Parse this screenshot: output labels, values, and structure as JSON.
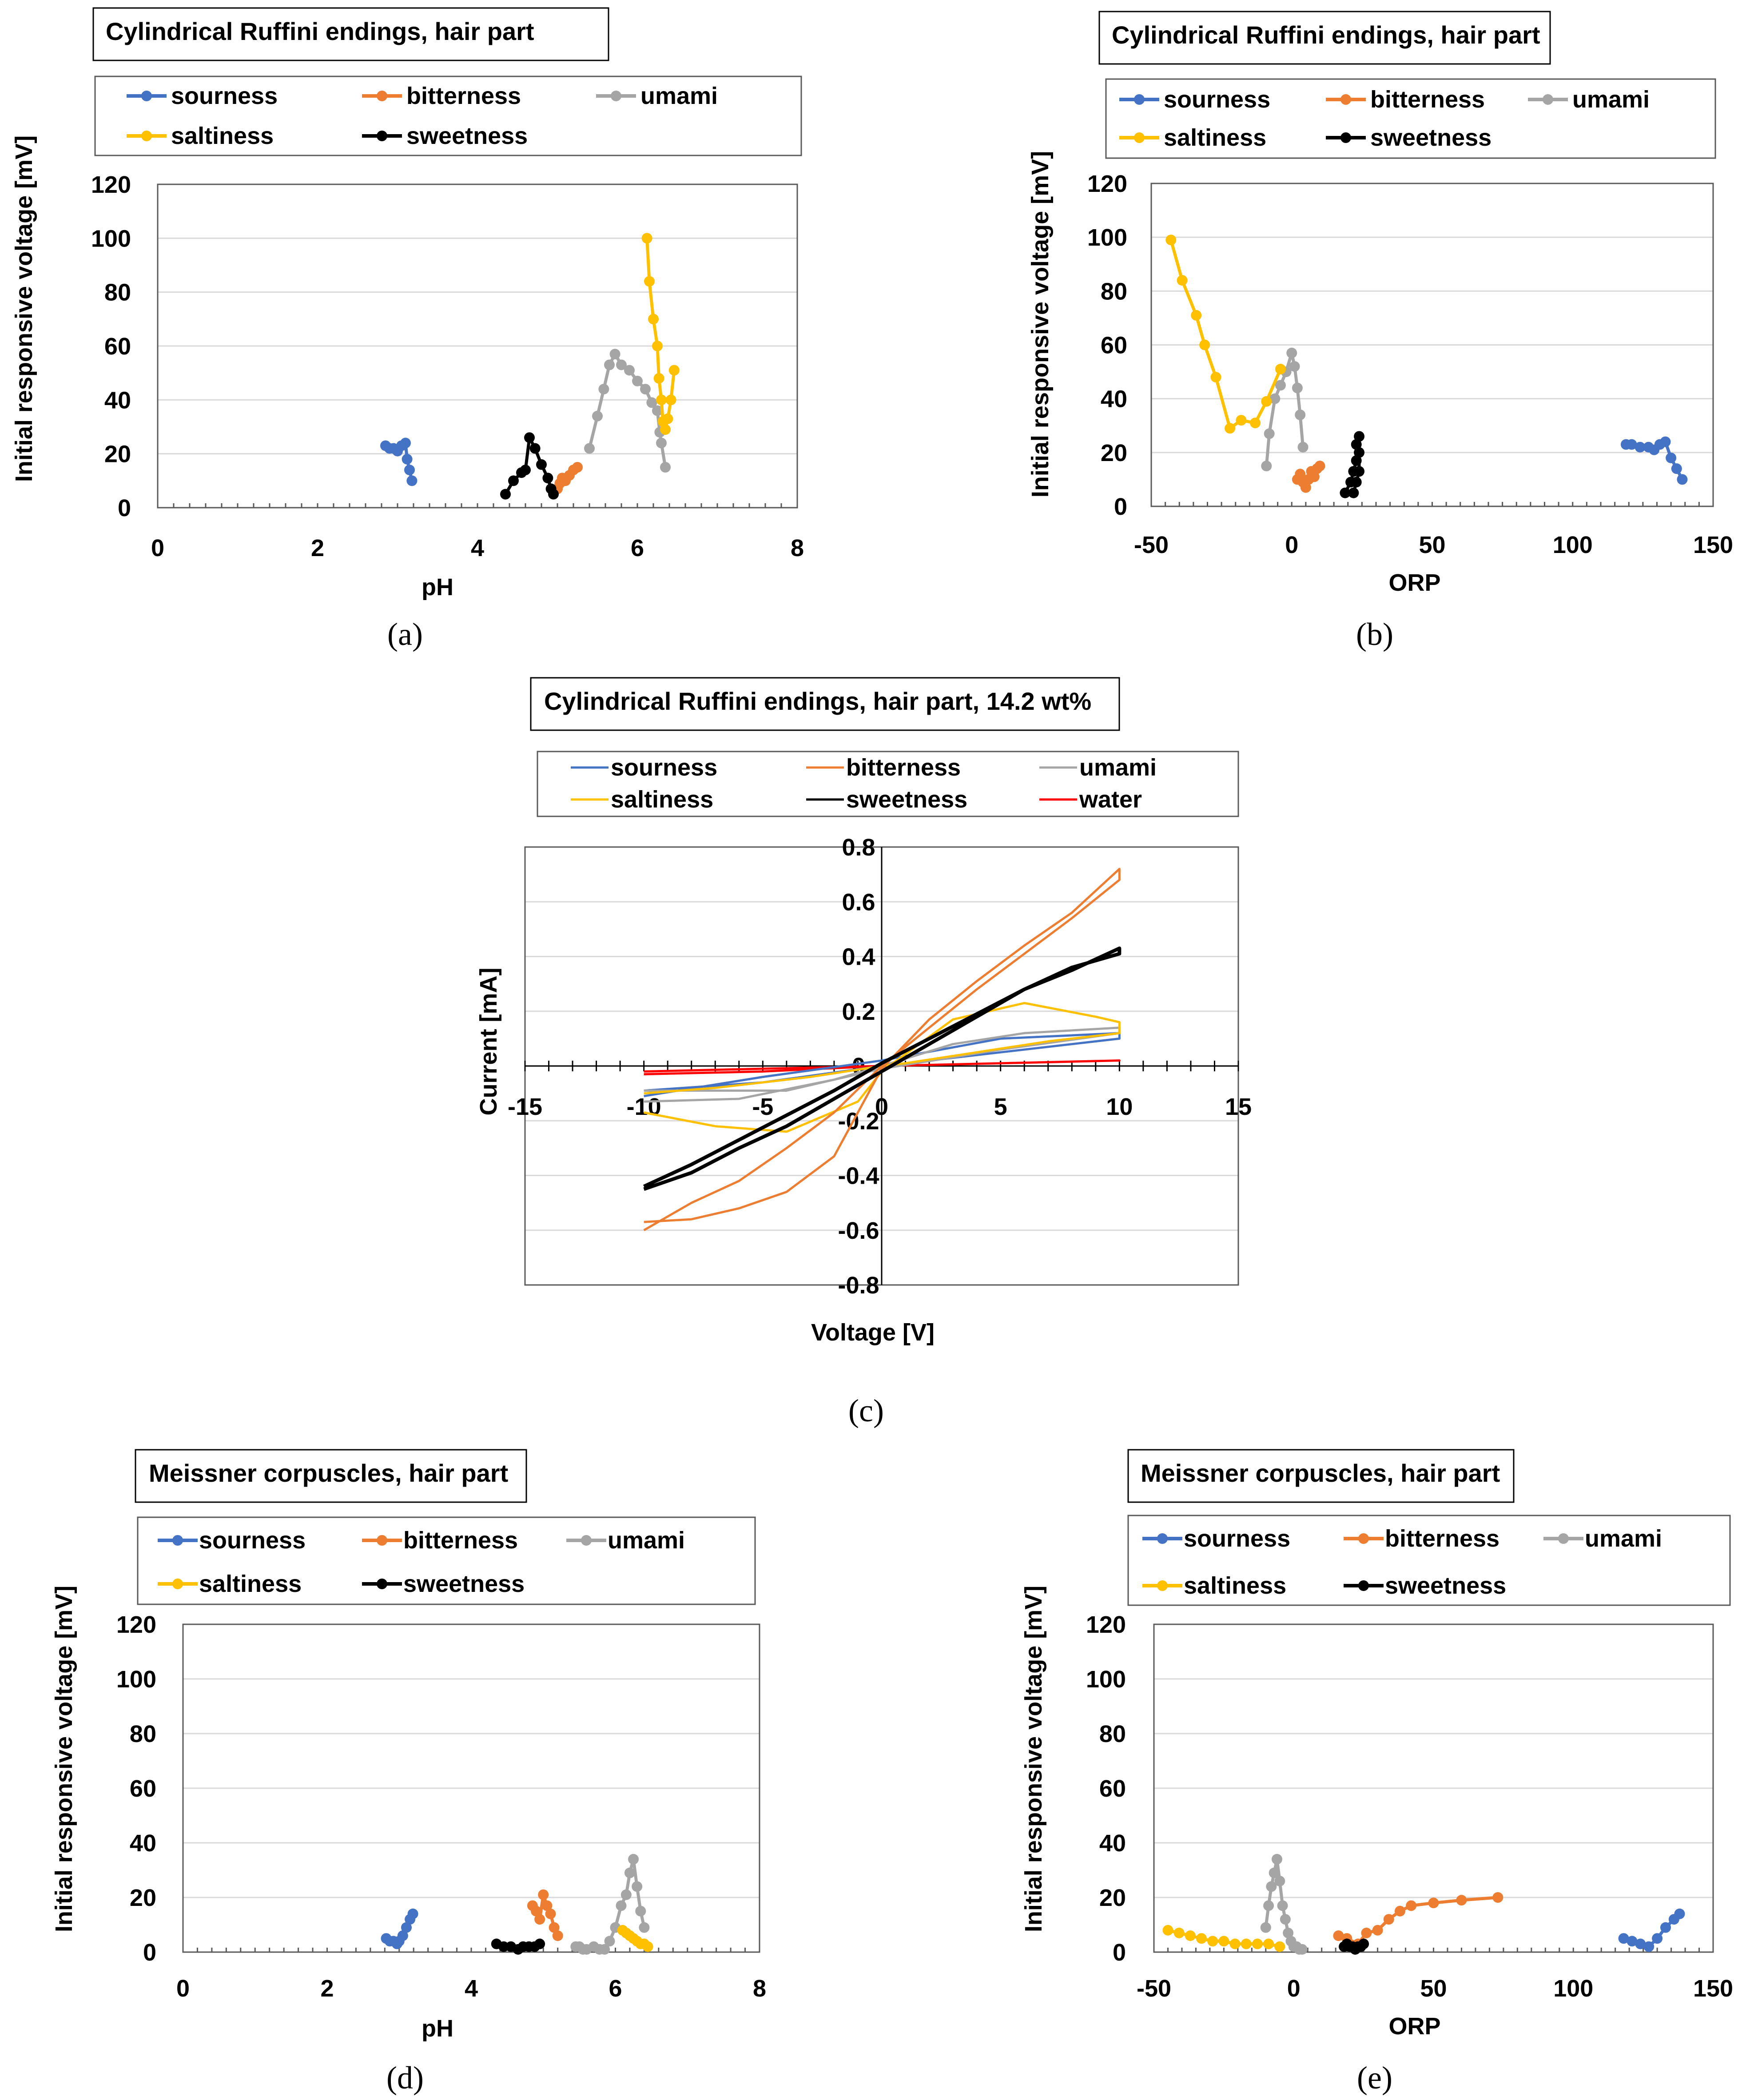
{
  "colors": {
    "sourness": "#4472C4",
    "bitterness": "#ED7D31",
    "umami": "#A5A5A5",
    "saltiness": "#FFC000",
    "sweetness": "#000000",
    "water": "#FF0000",
    "grid": "#D9D9D9",
    "frame": "#595959"
  },
  "chart_data": [
    {
      "id": "a",
      "type": "line",
      "caption": "(a)",
      "title": "Cylindrical Ruffini endings, hair part",
      "xlabel": "pH",
      "ylabel": "Initial responsive voltage   [mV]",
      "xlim": [
        0,
        8
      ],
      "ylim": [
        0,
        120
      ],
      "xticks": [
        "0",
        "2",
        "4",
        "6",
        "8"
      ],
      "yticks": [
        "0",
        "20",
        "40",
        "60",
        "80",
        "100",
        "120"
      ],
      "legend": [
        "sourness",
        "bitterness",
        "umami",
        "saltiness",
        "sweetness"
      ],
      "series": [
        {
          "name": "sourness",
          "x": [
            2.85,
            2.9,
            2.95,
            3.0,
            3.05,
            3.1,
            3.12,
            3.15,
            3.18
          ],
          "y": [
            23,
            22,
            22,
            21,
            23,
            24,
            18,
            14,
            10
          ]
        },
        {
          "name": "bitterness",
          "x": [
            5.0,
            5.03,
            5.06,
            5.1,
            5.15,
            5.2,
            5.25
          ],
          "y": [
            7,
            9,
            11,
            10,
            12,
            14,
            15
          ]
        },
        {
          "name": "umami",
          "x": [
            5.4,
            5.5,
            5.58,
            5.65,
            5.72,
            5.8,
            5.9,
            6.0,
            6.1,
            6.18,
            6.25,
            6.28,
            6.3,
            6.35
          ],
          "y": [
            22,
            34,
            44,
            53,
            57,
            53,
            51,
            47,
            44,
            39,
            36,
            28,
            24,
            15
          ]
        },
        {
          "name": "saltiness",
          "x": [
            6.12,
            6.15,
            6.2,
            6.25,
            6.27,
            6.3,
            6.32,
            6.35,
            6.38,
            6.42,
            6.46
          ],
          "y": [
            100,
            84,
            70,
            60,
            48,
            40,
            32,
            29,
            33,
            40,
            51
          ]
        },
        {
          "name": "sweetness",
          "x": [
            4.35,
            4.45,
            4.55,
            4.6,
            4.65,
            4.72,
            4.8,
            4.88,
            4.92,
            4.95
          ],
          "y": [
            5,
            10,
            13,
            14,
            26,
            22,
            16,
            11,
            7,
            5
          ]
        }
      ]
    },
    {
      "id": "b",
      "type": "line",
      "caption": "(b)",
      "title": "Cylindrical Ruffini endings, hair part",
      "xlabel": "ORP",
      "ylabel": "Initial responsive voltage   [mV]",
      "xlim": [
        -50,
        150
      ],
      "ylim": [
        0,
        120
      ],
      "xticks": [
        "-50",
        "0",
        "50",
        "100",
        "150"
      ],
      "yticks": [
        "0",
        "20",
        "40",
        "60",
        "80",
        "100",
        "120"
      ],
      "legend": [
        "sourness",
        "bitterness",
        "umami",
        "saltiness",
        "sweetness"
      ],
      "series": [
        {
          "name": "sourness",
          "x": [
            119,
            121,
            124,
            127,
            129,
            131,
            133,
            135,
            137,
            139
          ],
          "y": [
            23,
            23,
            22,
            22,
            21,
            23,
            24,
            18,
            14,
            10
          ]
        },
        {
          "name": "bitterness",
          "x": [
            2,
            3,
            4,
            5,
            6,
            7,
            8,
            9,
            10
          ],
          "y": [
            10,
            12,
            9,
            7,
            10,
            13,
            11,
            14,
            15
          ]
        },
        {
          "name": "umami",
          "x": [
            -9,
            -8,
            -6,
            -4,
            -2,
            0,
            1,
            2,
            3,
            4
          ],
          "y": [
            15,
            27,
            40,
            45,
            50,
            57,
            52,
            44,
            34,
            22
          ]
        },
        {
          "name": "saltiness",
          "x": [
            -43,
            -39,
            -34,
            -31,
            -27,
            -22,
            -18,
            -13,
            -9,
            -4
          ],
          "y": [
            99,
            84,
            71,
            60,
            48,
            29,
            32,
            31,
            39,
            51
          ]
        },
        {
          "name": "sweetness",
          "x": [
            19,
            21,
            22,
            23,
            23,
            24,
            24,
            24,
            23,
            22
          ],
          "y": [
            5,
            9,
            13,
            17,
            23,
            26,
            20,
            13,
            9,
            5
          ]
        }
      ]
    },
    {
      "id": "c",
      "type": "line",
      "caption": "(c)",
      "title": "Cylindrical Ruffini endings, hair part, 14.2 wt%",
      "xlabel": "Voltage   [V]",
      "ylabel": "Current   [mA]",
      "xlim": [
        -15,
        15
      ],
      "ylim": [
        -0.8,
        0.8
      ],
      "xticks": [
        "-15",
        "-10",
        "-5",
        "0",
        "5",
        "10",
        "15"
      ],
      "yticks": [
        "-0.8",
        "-0.6",
        "-0.4",
        "-0.2",
        "0",
        "0.2",
        "0.4",
        "0.6",
        "0.8"
      ],
      "legend": [
        "sourness",
        "bitterness",
        "umami",
        "saltiness",
        "sweetness",
        "water"
      ],
      "series": [
        {
          "name": "water",
          "x": [
            -10,
            -5,
            0,
            5,
            10,
            10,
            5,
            0,
            -5,
            -10
          ],
          "y": [
            -0.02,
            -0.01,
            0,
            0.01,
            0.02,
            0.02,
            0.01,
            0,
            -0.02,
            -0.03
          ]
        },
        {
          "name": "sourness",
          "x": [
            -10,
            -5,
            0,
            5,
            10,
            10,
            5,
            0,
            -5,
            -10
          ],
          "y": [
            -0.09,
            -0.06,
            0,
            0.05,
            0.1,
            0.12,
            0.1,
            0.02,
            -0.04,
            -0.11
          ]
        },
        {
          "name": "umami",
          "x": [
            -10,
            -6,
            -2,
            0,
            3,
            6,
            10,
            10,
            5,
            0,
            -4,
            -10
          ],
          "y": [
            -0.13,
            -0.12,
            -0.05,
            0,
            0.08,
            0.12,
            0.14,
            0.12,
            0.06,
            -0.01,
            -0.09,
            -0.09
          ]
        },
        {
          "name": "saltiness",
          "x": [
            -10,
            -7,
            -4,
            -1,
            0,
            3,
            6,
            9,
            10,
            10,
            7,
            4,
            1,
            0,
            -3,
            -7,
            -10
          ],
          "y": [
            -0.17,
            -0.22,
            -0.24,
            -0.13,
            -0.02,
            0.17,
            0.23,
            0.18,
            0.16,
            0.12,
            0.09,
            0.05,
            0.01,
            0,
            -0.04,
            -0.08,
            -0.1
          ]
        },
        {
          "name": "bitterness",
          "x": [
            -10,
            -8,
            -6,
            -4,
            -2,
            0,
            2,
            4,
            6,
            8,
            10,
            10,
            8,
            6,
            4,
            2,
            0,
            -2,
            -4,
            -6,
            -8,
            -10
          ],
          "y": [
            -0.57,
            -0.56,
            -0.52,
            -0.46,
            -0.33,
            -0.01,
            0.17,
            0.31,
            0.44,
            0.56,
            0.72,
            0.68,
            0.54,
            0.41,
            0.28,
            0.14,
            0,
            -0.17,
            -0.3,
            -0.42,
            -0.5,
            -0.6
          ]
        },
        {
          "name": "sweetness",
          "x": [
            -10,
            -8,
            -6,
            -4,
            -2,
            0,
            2,
            4,
            6,
            8,
            10,
            10,
            8,
            6,
            4,
            2,
            0,
            -2,
            -4,
            -6,
            -8,
            -10
          ],
          "y": [
            -0.45,
            -0.39,
            -0.3,
            -0.22,
            -0.12,
            -0.02,
            0.08,
            0.18,
            0.28,
            0.35,
            0.43,
            0.41,
            0.36,
            0.28,
            0.19,
            0.1,
            0.01,
            -0.09,
            -0.18,
            -0.27,
            -0.36,
            -0.44
          ]
        }
      ]
    },
    {
      "id": "d",
      "type": "line",
      "caption": "(d)",
      "title": "Meissner corpuscles, hair part",
      "xlabel": "pH",
      "ylabel": "Initial responsive voltage   [mV]",
      "xlim": [
        0,
        8
      ],
      "ylim": [
        0,
        120
      ],
      "xticks": [
        "0",
        "2",
        "4",
        "6",
        "8"
      ],
      "yticks": [
        "0",
        "20",
        "40",
        "60",
        "80",
        "100",
        "120"
      ],
      "legend": [
        "sourness",
        "bitterness",
        "umami",
        "saltiness",
        "sweetness"
      ],
      "series": [
        {
          "name": "sourness",
          "x": [
            2.82,
            2.87,
            2.92,
            2.97,
            3.0,
            3.05,
            3.1,
            3.15,
            3.19
          ],
          "y": [
            5,
            4,
            4,
            3,
            4,
            6,
            9,
            12,
            14
          ]
        },
        {
          "name": "bitterness",
          "x": [
            4.85,
            4.9,
            4.95,
            5.0,
            5.05,
            5.1,
            5.15,
            5.2
          ],
          "y": [
            17,
            15,
            12,
            21,
            17,
            14,
            9,
            6
          ]
        },
        {
          "name": "umami",
          "x": [
            5.45,
            5.5,
            5.55,
            5.6,
            5.7,
            5.78,
            5.85,
            5.92,
            6.0,
            6.08,
            6.15,
            6.2,
            6.25,
            6.3,
            6.35,
            6.4
          ],
          "y": [
            2,
            2,
            1,
            1,
            2,
            1,
            1,
            4,
            9,
            17,
            21,
            29,
            34,
            24,
            15,
            9
          ]
        },
        {
          "name": "saltiness",
          "x": [
            6.1,
            6.15,
            6.2,
            6.25,
            6.3,
            6.35,
            6.4,
            6.45
          ],
          "y": [
            8,
            7,
            6,
            5,
            4,
            3,
            3,
            2
          ]
        },
        {
          "name": "sweetness",
          "x": [
            4.35,
            4.45,
            4.55,
            4.65,
            4.72,
            4.8,
            4.88,
            4.95
          ],
          "y": [
            3,
            2,
            2,
            1,
            2,
            2,
            2,
            3
          ]
        }
      ]
    },
    {
      "id": "e",
      "type": "line",
      "caption": "(e)",
      "title": "Meissner corpuscles, hair part",
      "xlabel": "ORP",
      "ylabel": "Initial responsive voltage   [mV]",
      "xlim": [
        -50,
        150
      ],
      "ylim": [
        0,
        120
      ],
      "xticks": [
        "-50",
        "0",
        "50",
        "100",
        "150"
      ],
      "yticks": [
        "0",
        "20",
        "40",
        "60",
        "80",
        "100",
        "120"
      ],
      "legend": [
        "sourness",
        "bitterness",
        "umami",
        "saltiness",
        "sweetness"
      ],
      "series": [
        {
          "name": "sourness",
          "x": [
            118,
            121,
            124,
            127,
            130,
            133,
            136,
            138
          ],
          "y": [
            5,
            4,
            3,
            2,
            5,
            9,
            12,
            14
          ]
        },
        {
          "name": "bitterness",
          "x": [
            16,
            19,
            23,
            26,
            30,
            34,
            38,
            42,
            50,
            60,
            73
          ],
          "y": [
            6,
            5,
            3,
            7,
            8,
            12,
            15,
            17,
            18,
            19,
            20
          ]
        },
        {
          "name": "umami",
          "x": [
            -10,
            -9,
            -8,
            -7,
            -6,
            -5,
            -4,
            -3,
            -2,
            -1,
            0,
            1,
            2,
            3
          ],
          "y": [
            9,
            17,
            24,
            29,
            34,
            26,
            17,
            12,
            7,
            4,
            2,
            2,
            1,
            1
          ]
        },
        {
          "name": "saltiness",
          "x": [
            -45,
            -41,
            -37,
            -33,
            -29,
            -25,
            -21,
            -17,
            -13,
            -9,
            -5
          ],
          "y": [
            8,
            7,
            6,
            5,
            4,
            4,
            3,
            3,
            3,
            3,
            2
          ]
        },
        {
          "name": "sweetness",
          "x": [
            18,
            19,
            20,
            21,
            22,
            23,
            24,
            25
          ],
          "y": [
            2,
            3,
            2,
            2,
            1,
            2,
            2,
            3
          ]
        }
      ]
    }
  ]
}
